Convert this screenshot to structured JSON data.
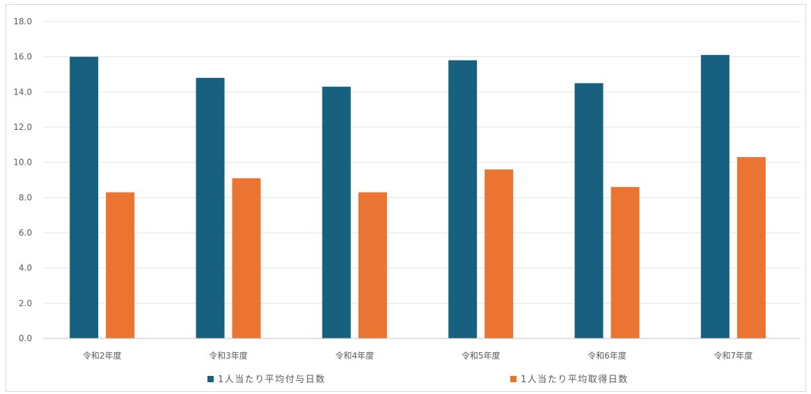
{
  "chart_data": {
    "type": "bar",
    "categories": [
      "令和2年度",
      "令和3年度",
      "令和4年度",
      "令和5年度",
      "令和6年度",
      "令和7年度"
    ],
    "series": [
      {
        "name": "1人当たり平均付与日数",
        "values": [
          16.0,
          14.8,
          14.3,
          15.8,
          14.5,
          16.1
        ],
        "color": "#17607f"
      },
      {
        "name": "1人当たり平均取得日数",
        "values": [
          8.3,
          9.1,
          8.3,
          9.6,
          8.6,
          10.3
        ],
        "color": "#eb7433"
      }
    ],
    "title": "",
    "xlabel": "",
    "ylabel": "",
    "ylim": [
      0,
      18
    ],
    "yticks": [
      "0.0",
      "2.0",
      "4.0",
      "6.0",
      "8.0",
      "10.0",
      "12.0",
      "14.0",
      "16.0",
      "18.0"
    ],
    "grid": true,
    "legend": "bottom"
  }
}
